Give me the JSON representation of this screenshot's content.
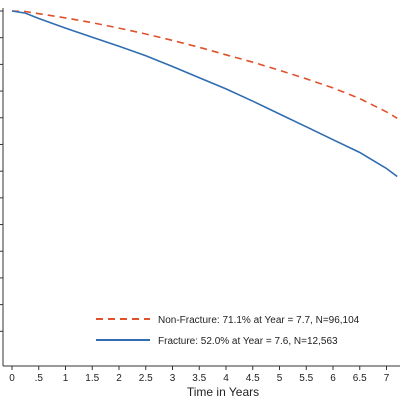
{
  "chart_data": {
    "type": "line",
    "xlabel": "Time in Years",
    "ylabel": "",
    "title": "",
    "xlim": [
      0,
      7.2
    ],
    "ylim": [
      0.35,
      1.0
    ],
    "x_ticks": [
      0,
      0.5,
      1,
      1.5,
      2,
      2.5,
      3,
      3.5,
      4,
      4.5,
      5,
      5.5,
      6,
      6.5,
      7
    ],
    "x_tick_labels": [
      "0",
      ".5",
      "1",
      "1.5",
      "2",
      "2.5",
      "3",
      "3.5",
      "4",
      "4.5",
      "5",
      "5.5",
      "6",
      "6.5",
      "7"
    ],
    "y_ticks": [
      0.4,
      0.45,
      0.5,
      0.55,
      0.6,
      0.65,
      0.7,
      0.75,
      0.8,
      0.85,
      0.9,
      0.95,
      1.0
    ],
    "grid": false,
    "legend_position": "bottom-right",
    "series": [
      {
        "name": "Non-Fracture: 71.1% at Year = 7.7, N=96,104",
        "color": "#e0522c",
        "dash": "dashed",
        "x": [
          0,
          0.25,
          0.5,
          1,
          1.5,
          2,
          2.5,
          3,
          3.5,
          4,
          4.5,
          5,
          5.5,
          6,
          6.5,
          7,
          7.2
        ],
        "y": [
          1.0,
          0.999,
          0.995,
          0.987,
          0.978,
          0.968,
          0.957,
          0.945,
          0.932,
          0.918,
          0.904,
          0.889,
          0.873,
          0.856,
          0.836,
          0.811,
          0.799
        ]
      },
      {
        "name": "Fracture: 52.0% at Year = 7.6, N=12,563",
        "color": "#2f6db0",
        "dash": "solid",
        "x": [
          0,
          0.25,
          0.5,
          1,
          1.5,
          2,
          2.5,
          3,
          3.5,
          4,
          4.5,
          5,
          5.5,
          6,
          6.5,
          7,
          7.2
        ],
        "y": [
          1.0,
          0.996,
          0.986,
          0.968,
          0.951,
          0.934,
          0.916,
          0.896,
          0.875,
          0.854,
          0.831,
          0.807,
          0.783,
          0.759,
          0.735,
          0.705,
          0.69
        ]
      }
    ]
  }
}
